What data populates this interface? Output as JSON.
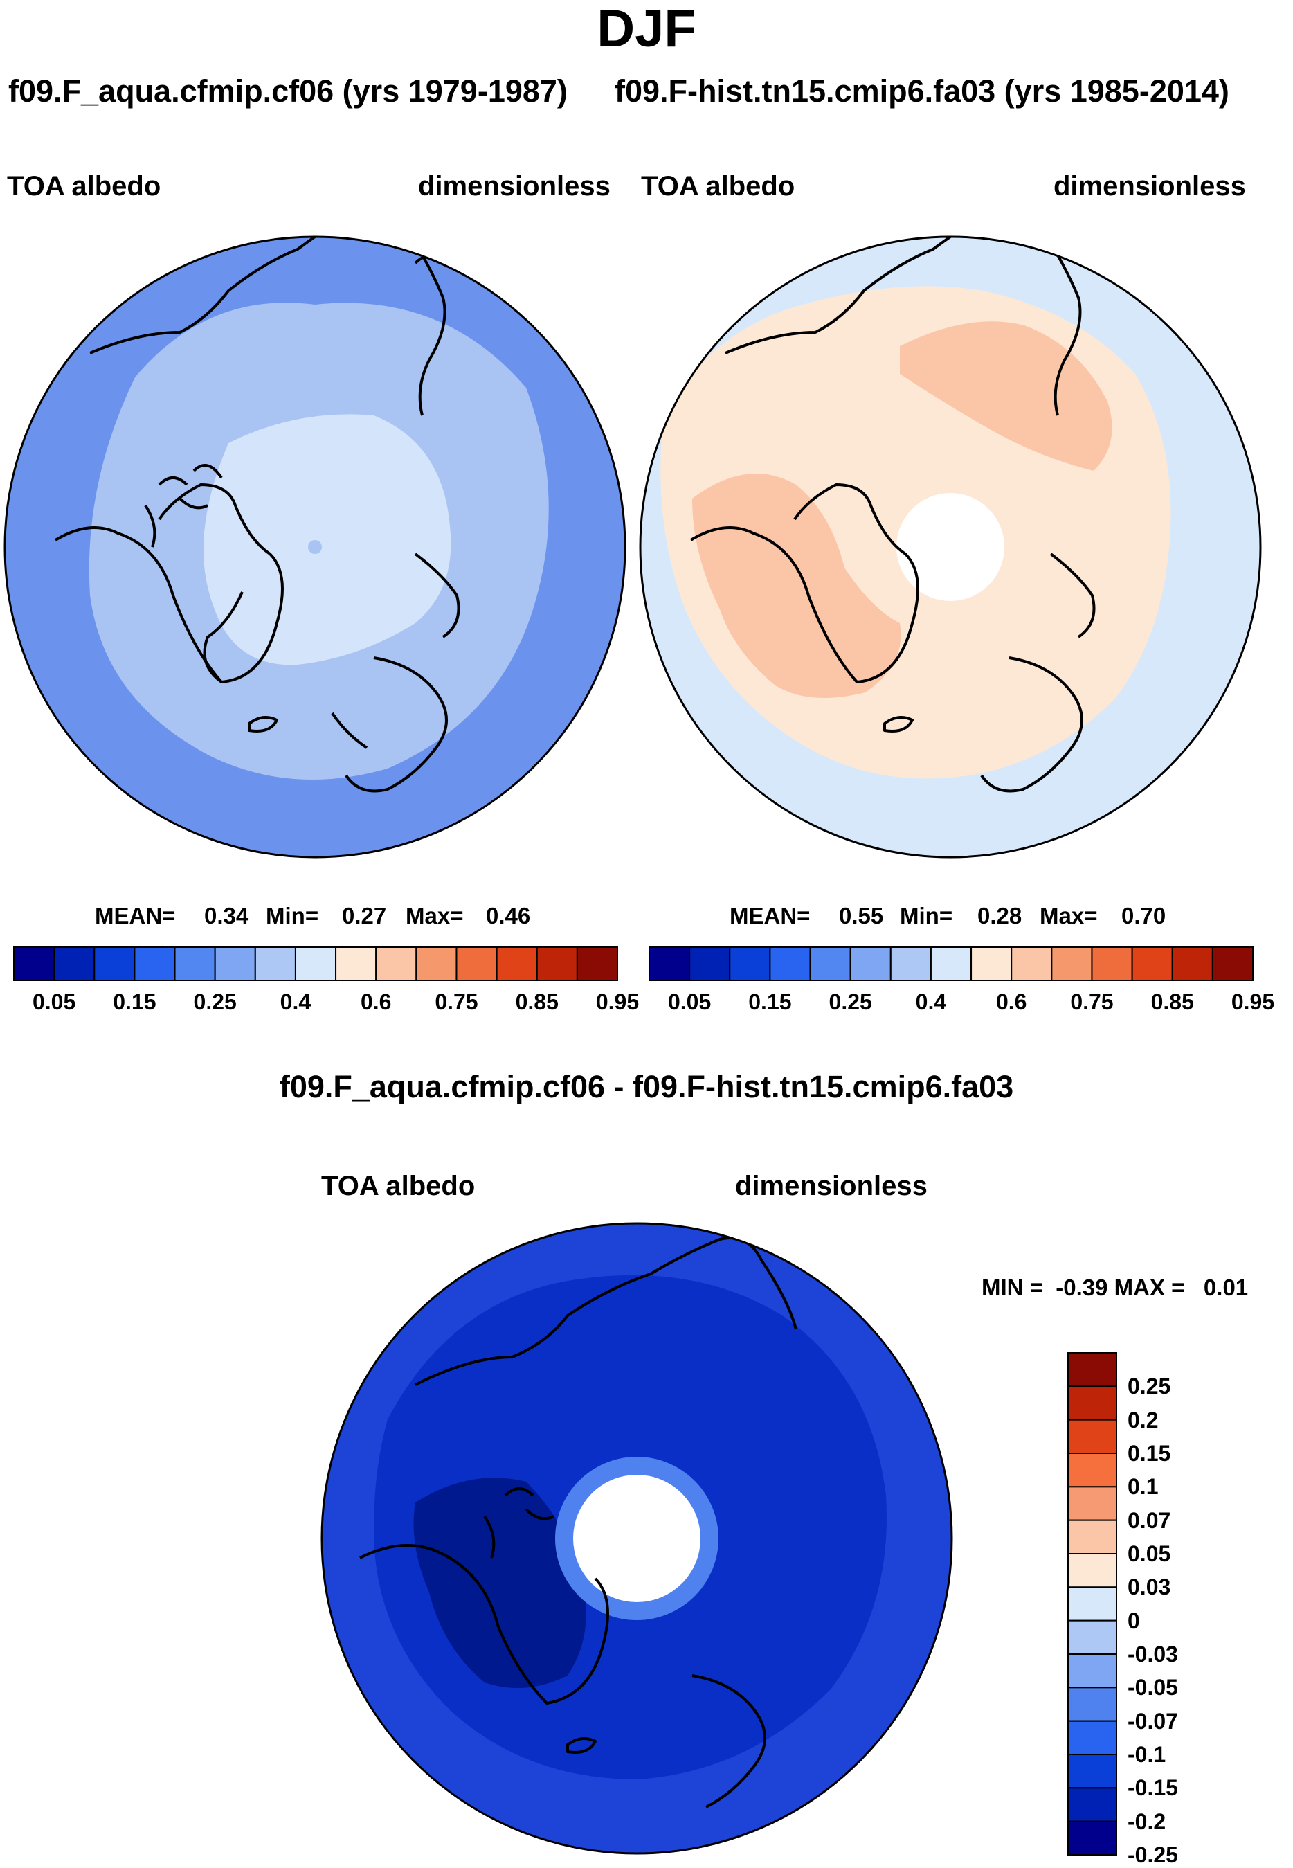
{
  "figure": {
    "season": "DJF",
    "left_panel": {
      "header": "f09.F_aqua.cfmip.cf06 (yrs 1979-1987)",
      "variable": "TOA albedo",
      "units": "dimensionless",
      "stats": {
        "mean_label": "MEAN=",
        "mean": "0.34",
        "min_label": "Min=",
        "min": "0.27",
        "max_label": "Max=",
        "max": "0.46"
      }
    },
    "right_panel": {
      "header": "f09.F-hist.tn15.cmip6.fa03 (yrs 1985-2014)",
      "variable": "TOA albedo",
      "units": "dimensionless",
      "stats": {
        "mean_label": "MEAN=",
        "mean": "0.55",
        "min_label": "Min=",
        "min": "0.28",
        "max_label": "Max=",
        "max": "0.70"
      }
    },
    "diff_panel": {
      "header": "f09.F_aqua.cfmip.cf06 - f09.F-hist.tn15.cmip6.fa03",
      "variable": "TOA albedo",
      "units": "dimensionless",
      "minmax_text": "MIN =  -0.39 MAX =   0.01"
    }
  },
  "colorbars": {
    "abs_colors": [
      "#00008c",
      "#0022b4",
      "#0a3fd8",
      "#2864f0",
      "#5287f2",
      "#7fa6f2",
      "#adc8f5",
      "#d8e8fb",
      "#fde8d6",
      "#fbc5a8",
      "#f5986c",
      "#ef6c3c",
      "#e04317",
      "#bd2408",
      "#8a0b04"
    ],
    "abs_labels": [
      "0.05",
      "0.15",
      "0.25",
      "0.4",
      "0.6",
      "0.75",
      "0.85",
      "0.95"
    ],
    "diff_colors": [
      "#8a0b04",
      "#bd2408",
      "#e04317",
      "#f5703c",
      "#f59a72",
      "#fbc5a8",
      "#fde8d6",
      "#d8e8fb",
      "#adc8f5",
      "#7fa6f2",
      "#4f82ee",
      "#2864f0",
      "#0a3fd8",
      "#0022b4",
      "#00008c"
    ],
    "diff_labels": [
      "0.25",
      "0.2",
      "0.15",
      "0.1",
      "0.07",
      "0.05",
      "0.03",
      "0",
      "-0.03",
      "-0.05",
      "-0.07",
      "-0.1",
      "-0.15",
      "-0.2",
      "-0.25"
    ]
  },
  "map_fields": {
    "left": {
      "outer": "#6b93ed",
      "mid": "#a9c3f3",
      "inner": "#d4e4fa",
      "pole": "#a9c3f3"
    },
    "right": {
      "outer": "#d8e8fb",
      "mid": "#fde8d6",
      "land": "#fbc5a8",
      "pole": "#ffffff"
    },
    "diff": {
      "outer": "#1d44d6",
      "mid": "#0a2fc6",
      "land": "#00198f",
      "ring": "#4f82ee",
      "pole": "#ffffff"
    }
  }
}
